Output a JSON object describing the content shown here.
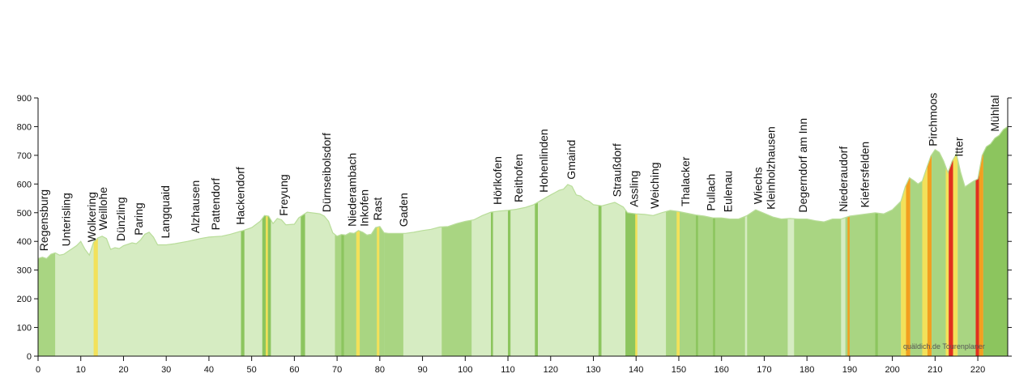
{
  "chart_data": {
    "type": "area",
    "title": "",
    "xlabel": "",
    "ylabel": "",
    "xlim": [
      0,
      227
    ],
    "ylim": [
      0,
      900
    ],
    "x_ticks": [
      0,
      10,
      20,
      30,
      40,
      50,
      60,
      70,
      80,
      90,
      100,
      110,
      120,
      130,
      140,
      150,
      160,
      170,
      180,
      190,
      200,
      210,
      220
    ],
    "y_ticks": [
      0,
      100,
      200,
      300,
      400,
      500,
      600,
      700,
      800,
      900
    ],
    "grid": false,
    "credit": "quäldich.de Tourenplaner",
    "colors": {
      "flat": "#d6ecc2",
      "moderate": "#a9d582",
      "steep": "#8cc55e",
      "very_steep": "#f2e15a",
      "extreme": "#f2a020",
      "max": "#e0301e",
      "outline": "#b9dd9a",
      "axis": "#111111"
    },
    "profile": [
      [
        0,
        340
      ],
      [
        1,
        345
      ],
      [
        2,
        340
      ],
      [
        3,
        355
      ],
      [
        4,
        360
      ],
      [
        5,
        352
      ],
      [
        6,
        355
      ],
      [
        7,
        365
      ],
      [
        8,
        375
      ],
      [
        9,
        385
      ],
      [
        10,
        400
      ],
      [
        11,
        372
      ],
      [
        12,
        352
      ],
      [
        13,
        398
      ],
      [
        14,
        412
      ],
      [
        15,
        418
      ],
      [
        16,
        410
      ],
      [
        17,
        372
      ],
      [
        18,
        378
      ],
      [
        19,
        375
      ],
      [
        20,
        385
      ],
      [
        21,
        390
      ],
      [
        22,
        395
      ],
      [
        23,
        392
      ],
      [
        24,
        405
      ],
      [
        25,
        425
      ],
      [
        26,
        432
      ],
      [
        27,
        415
      ],
      [
        28,
        388
      ],
      [
        30,
        388
      ],
      [
        32,
        392
      ],
      [
        35,
        400
      ],
      [
        38,
        410
      ],
      [
        40,
        415
      ],
      [
        43,
        418
      ],
      [
        45,
        425
      ],
      [
        48,
        438
      ],
      [
        50,
        448
      ],
      [
        52,
        470
      ],
      [
        53,
        490
      ],
      [
        54,
        488
      ],
      [
        55,
        462
      ],
      [
        56,
        480
      ],
      [
        57,
        475
      ],
      [
        58,
        458
      ],
      [
        60,
        460
      ],
      [
        61,
        482
      ],
      [
        62,
        492
      ],
      [
        63,
        502
      ],
      [
        65,
        498
      ],
      [
        66,
        496
      ],
      [
        67,
        488
      ],
      [
        68,
        470
      ],
      [
        69,
        430
      ],
      [
        70,
        418
      ],
      [
        71,
        424
      ],
      [
        72,
        422
      ],
      [
        73,
        430
      ],
      [
        74,
        428
      ],
      [
        75,
        438
      ],
      [
        76,
        432
      ],
      [
        77,
        422
      ],
      [
        78,
        425
      ],
      [
        79,
        448
      ],
      [
        80,
        452
      ],
      [
        81,
        430
      ],
      [
        82,
        428
      ],
      [
        84,
        428
      ],
      [
        86,
        428
      ],
      [
        88,
        432
      ],
      [
        90,
        438
      ],
      [
        92,
        442
      ],
      [
        94,
        450
      ],
      [
        96,
        452
      ],
      [
        98,
        462
      ],
      [
        100,
        470
      ],
      [
        102,
        475
      ],
      [
        104,
        490
      ],
      [
        106,
        502
      ],
      [
        108,
        506
      ],
      [
        110,
        508
      ],
      [
        112,
        512
      ],
      [
        114,
        518
      ],
      [
        116,
        528
      ],
      [
        118,
        545
      ],
      [
        120,
        562
      ],
      [
        121,
        570
      ],
      [
        122,
        578
      ],
      [
        123,
        582
      ],
      [
        124,
        598
      ],
      [
        125,
        592
      ],
      [
        126,
        562
      ],
      [
        127,
        558
      ],
      [
        128,
        545
      ],
      [
        129,
        540
      ],
      [
        130,
        528
      ],
      [
        132,
        524
      ],
      [
        134,
        532
      ],
      [
        135,
        536
      ],
      [
        137,
        520
      ],
      [
        138,
        500
      ],
      [
        140,
        496
      ],
      [
        142,
        494
      ],
      [
        144,
        490
      ],
      [
        146,
        500
      ],
      [
        148,
        508
      ],
      [
        150,
        504
      ],
      [
        152,
        498
      ],
      [
        154,
        492
      ],
      [
        156,
        488
      ],
      [
        158,
        482
      ],
      [
        160,
        482
      ],
      [
        162,
        478
      ],
      [
        164,
        478
      ],
      [
        166,
        490
      ],
      [
        168,
        510
      ],
      [
        170,
        498
      ],
      [
        172,
        485
      ],
      [
        174,
        478
      ],
      [
        176,
        480
      ],
      [
        178,
        478
      ],
      [
        180,
        478
      ],
      [
        182,
        472
      ],
      [
        184,
        468
      ],
      [
        186,
        478
      ],
      [
        188,
        478
      ],
      [
        190,
        488
      ],
      [
        192,
        492
      ],
      [
        194,
        496
      ],
      [
        196,
        500
      ],
      [
        198,
        496
      ],
      [
        200,
        510
      ],
      [
        202,
        540
      ],
      [
        203,
        590
      ],
      [
        204,
        622
      ],
      [
        205,
        612
      ],
      [
        206,
        600
      ],
      [
        207,
        610
      ],
      [
        208,
        655
      ],
      [
        209,
        698
      ],
      [
        210,
        720
      ],
      [
        211,
        710
      ],
      [
        212,
        680
      ],
      [
        213,
        640
      ],
      [
        214,
        680
      ],
      [
        215,
        705
      ],
      [
        216,
        640
      ],
      [
        217,
        590
      ],
      [
        218,
        600
      ],
      [
        219,
        610
      ],
      [
        220,
        618
      ],
      [
        221,
        700
      ],
      [
        222,
        730
      ],
      [
        223,
        740
      ],
      [
        224,
        760
      ],
      [
        225,
        770
      ],
      [
        226,
        790
      ],
      [
        227,
        800
      ]
    ],
    "gradient_stripes": [
      {
        "from": 0,
        "to": 4,
        "class": "moderate"
      },
      {
        "from": 13,
        "to": 14,
        "class": "very_steep"
      },
      {
        "from": 47.5,
        "to": 48.3,
        "class": "steep"
      },
      {
        "from": 52.5,
        "to": 54.5,
        "class": "steep"
      },
      {
        "from": 53.3,
        "to": 53.8,
        "class": "very_steep"
      },
      {
        "from": 61.5,
        "to": 62.5,
        "class": "steep"
      },
      {
        "from": 69.5,
        "to": 81,
        "class": "moderate"
      },
      {
        "from": 71,
        "to": 71.6,
        "class": "steep"
      },
      {
        "from": 74.5,
        "to": 75.3,
        "class": "very_steep"
      },
      {
        "from": 79.3,
        "to": 79.9,
        "class": "very_steep"
      },
      {
        "from": 81,
        "to": 85.5,
        "class": "moderate"
      },
      {
        "from": 94.5,
        "to": 101.5,
        "class": "moderate"
      },
      {
        "from": 106,
        "to": 106.5,
        "class": "steep"
      },
      {
        "from": 110,
        "to": 110.6,
        "class": "steep"
      },
      {
        "from": 116.3,
        "to": 117,
        "class": "steep"
      },
      {
        "from": 131.2,
        "to": 131.9,
        "class": "steep"
      },
      {
        "from": 137.5,
        "to": 140,
        "class": "steep"
      },
      {
        "from": 139.8,
        "to": 140.3,
        "class": "very_steep"
      },
      {
        "from": 147,
        "to": 165.5,
        "class": "moderate"
      },
      {
        "from": 149.5,
        "to": 150.2,
        "class": "very_steep"
      },
      {
        "from": 154,
        "to": 154.5,
        "class": "steep"
      },
      {
        "from": 158,
        "to": 158.5,
        "class": "steep"
      },
      {
        "from": 166,
        "to": 175.5,
        "class": "moderate"
      },
      {
        "from": 177,
        "to": 188,
        "class": "moderate"
      },
      {
        "from": 189,
        "to": 202,
        "class": "moderate"
      },
      {
        "from": 189.5,
        "to": 190,
        "class": "extreme"
      },
      {
        "from": 196,
        "to": 196.6,
        "class": "steep"
      },
      {
        "from": 202,
        "to": 203.2,
        "class": "very_steep"
      },
      {
        "from": 203.2,
        "to": 204.2,
        "class": "extreme"
      },
      {
        "from": 204.2,
        "to": 207,
        "class": "moderate"
      },
      {
        "from": 207,
        "to": 208.2,
        "class": "very_steep"
      },
      {
        "from": 208.2,
        "to": 209.2,
        "class": "extreme"
      },
      {
        "from": 209.2,
        "to": 212.5,
        "class": "moderate"
      },
      {
        "from": 212.5,
        "to": 213.2,
        "class": "very_steep"
      },
      {
        "from": 213.2,
        "to": 214.2,
        "class": "max"
      },
      {
        "from": 214.2,
        "to": 215.3,
        "class": "very_steep"
      },
      {
        "from": 215.3,
        "to": 219.5,
        "class": "moderate"
      },
      {
        "from": 219.5,
        "to": 220.3,
        "class": "max"
      },
      {
        "from": 220.3,
        "to": 221.3,
        "class": "extreme"
      },
      {
        "from": 221.3,
        "to": 227,
        "class": "steep"
      }
    ],
    "places": [
      {
        "name": "Regensburg",
        "km": 1.3
      },
      {
        "name": "Unterisling",
        "km": 6.5
      },
      {
        "name": "Wolkering",
        "km": 12.5
      },
      {
        "name": "Weillohe",
        "km": 15.2
      },
      {
        "name": "Dünzling",
        "km": 19.3
      },
      {
        "name": "Paring",
        "km": 23.5
      },
      {
        "name": "Langquaid",
        "km": 29.8
      },
      {
        "name": "Alzhausen",
        "km": 36.8
      },
      {
        "name": "Pattendorf",
        "km": 41.5
      },
      {
        "name": "Hackendorf",
        "km": 47.3
      },
      {
        "name": "Freyung",
        "km": 57.5
      },
      {
        "name": "Dürnseibolsdorf",
        "km": 67.5
      },
      {
        "name": "Niederambach",
        "km": 73.5
      },
      {
        "name": "Inkofen",
        "km": 76.3
      },
      {
        "name": "Rast",
        "km": 79.5
      },
      {
        "name": "Gaden",
        "km": 85.5
      },
      {
        "name": "Hörlkofen",
        "km": 107.5
      },
      {
        "name": "Reithofen",
        "km": 112.5
      },
      {
        "name": "Hohenlinden",
        "km": 118.3
      },
      {
        "name": "Gmaind",
        "km": 124.8
      },
      {
        "name": "Straußdorf",
        "km": 135.5
      },
      {
        "name": "Assling",
        "km": 139.5
      },
      {
        "name": "Weiching",
        "km": 144.3
      },
      {
        "name": "Thalacker",
        "km": 151.5
      },
      {
        "name": "Pullach",
        "km": 157.5
      },
      {
        "name": "Eulenau",
        "km": 161.5
      },
      {
        "name": "Wiechs",
        "km": 168.5
      },
      {
        "name": "Kleinholzhausen",
        "km": 171.5
      },
      {
        "name": "Degerndorf am Inn",
        "km": 179
      },
      {
        "name": "Niederaudorf",
        "km": 188.5
      },
      {
        "name": "Kiefersfelden",
        "km": 193.5
      },
      {
        "name": "Pirchmoos",
        "km": 209.5
      },
      {
        "name": "Itter",
        "km": 215.5
      },
      {
        "name": "Mühltal",
        "km": 224
      }
    ]
  }
}
